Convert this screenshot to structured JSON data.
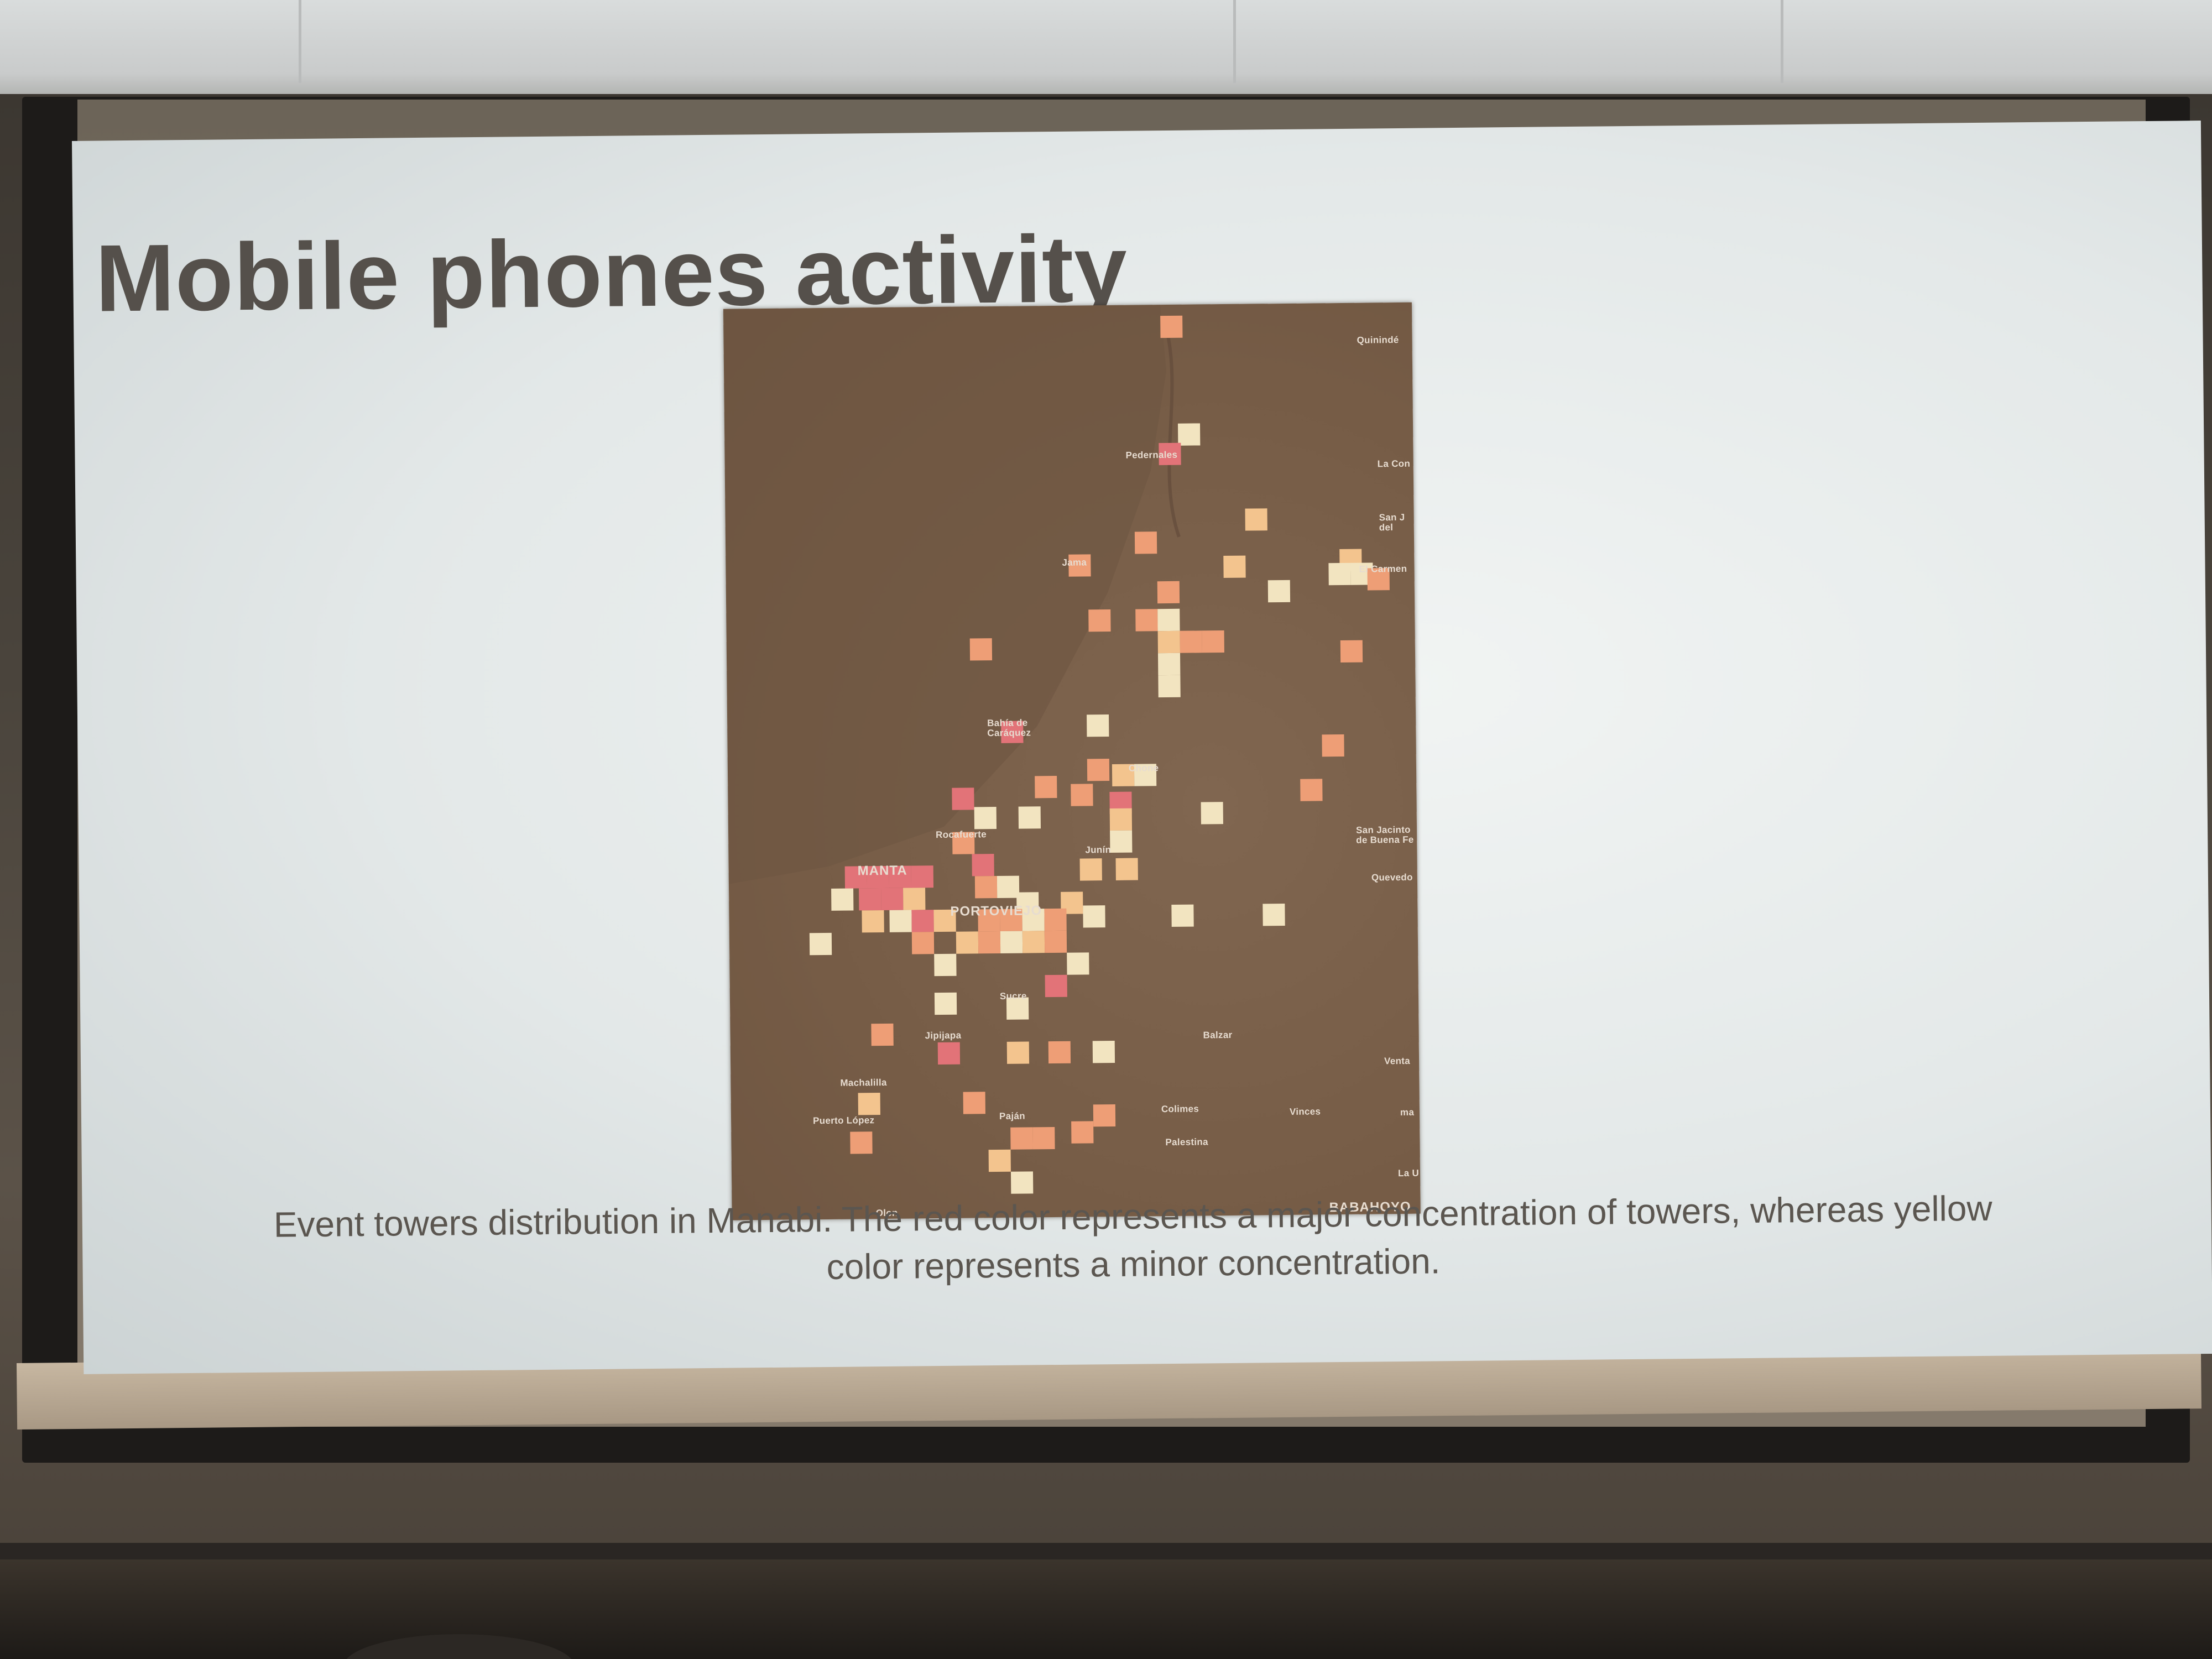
{
  "slide": {
    "title": "Mobile phones activity",
    "caption": {
      "line1": "Event towers distribution in Manabi. The red color represents a major concentration of towers, whereas yellow",
      "line2": "color represents a minor concentration."
    }
  },
  "map": {
    "colors": {
      "background": "#765c46",
      "coast": "#6b5240",
      "high": "#e27378",
      "medium": "#ee9e76",
      "low": "#f3c48e",
      "minimal": "#f2e4c0"
    },
    "labels": {
      "quininde": "Quinindé",
      "la_con": "La Con",
      "san_j_del": "San J del",
      "el_carmen": "El Carmen",
      "pedernales": "Pedernales",
      "jama": "Jama",
      "bahia_de_caraquez": "Bahía de Caráquez",
      "chone": "Chone",
      "san_jacinto": "San Jacinto de Buena Fe",
      "quevedo": "Quevedo",
      "rocafuerte": "Rocafuerte",
      "junin": "Junín",
      "manta": "MANTA",
      "portoviejo": "PORTOVIEJO",
      "jipijapa": "Jipijapa",
      "balzar": "Balzar",
      "ventanas": "Venta",
      "machalilla": "Machalilla",
      "colimes": "Colimes",
      "vinces": "Vinces",
      "puerto_lopez": "Puerto López",
      "palestina": "Palestina",
      "pajan": "Paján",
      "la_u": "La U",
      "olon": "Olon",
      "babahoyo": "BABAHOYO",
      "ma": "ma",
      "sucre": "Sucre"
    }
  }
}
